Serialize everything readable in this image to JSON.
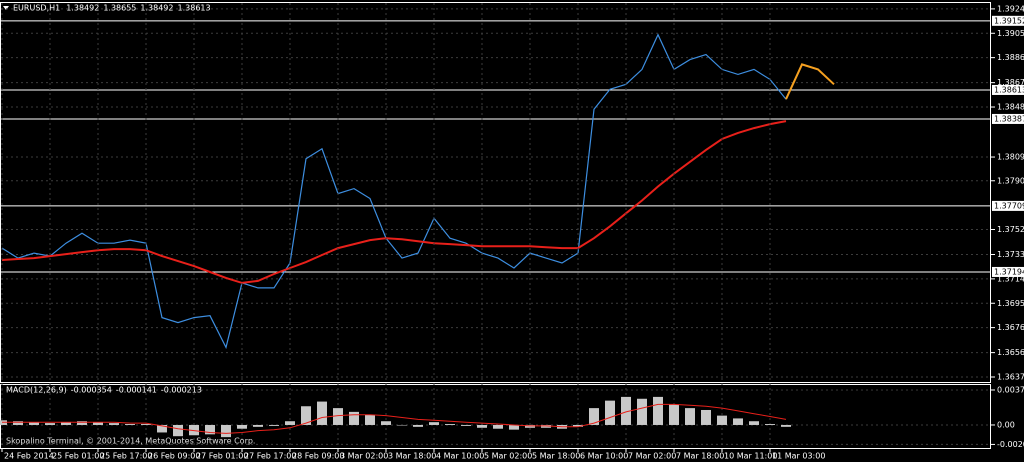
{
  "chart_data": [
    {
      "type": "line",
      "title": "EURUSD,H1",
      "readout": [
        1.38492,
        1.38655,
        1.38492,
        1.38613
      ],
      "categories": [
        "24 Feb 2014",
        null,
        null,
        "25 Feb 01:00",
        null,
        null,
        "25 Feb 17:00",
        null,
        null,
        "26 Feb 09:00",
        null,
        null,
        "27 Feb 01:00",
        null,
        null,
        "27 Feb 17:00",
        null,
        null,
        "28 Feb 09:00",
        null,
        null,
        "3 Mar 02:00",
        null,
        null,
        "3 Mar 18:00",
        null,
        null,
        "4 Mar 10:00",
        null,
        null,
        "5 Mar 02:00",
        null,
        null,
        "5 Mar 18:00",
        null,
        null,
        "6 Mar 10:00",
        null,
        null,
        "7 Mar 02:00",
        null,
        null,
        "7 Mar 18:00",
        null,
        null,
        "10 Mar 11:00",
        null,
        null,
        "11 Mar 03:00",
        null,
        null,
        null,
        null
      ],
      "series": [
        {
          "color": "#3d8ee0",
          "values": [
            1.3738,
            1.37302,
            1.37341,
            1.37318,
            1.37418,
            1.37496,
            1.37418,
            1.37418,
            1.37442,
            1.37418,
            1.36838,
            1.36799,
            1.36838,
            1.36853,
            1.36606,
            1.37109,
            1.3707,
            1.3707,
            1.37264,
            1.38076,
            1.38154,
            1.37805,
            1.37844,
            1.37767,
            1.37457,
            1.37302,
            1.37341,
            1.37612,
            1.37457,
            1.37418,
            1.37341,
            1.37302,
            1.37225,
            1.37341,
            1.37302,
            1.37264,
            1.37341,
            1.38463,
            1.38618,
            1.38657,
            1.38773,
            1.39044,
            1.38773,
            1.3885,
            1.38889,
            1.38773,
            1.38734,
            1.38773,
            1.38695,
            1.38541,
            null,
            null,
            null
          ]
        },
        {
          "color": "#e8201a",
          "values": [
            1.37287,
            1.37295,
            1.37302,
            1.37318,
            1.37333,
            1.37349,
            1.37364,
            1.37372,
            1.37372,
            1.37364,
            1.37318,
            1.37279,
            1.3724,
            1.37194,
            1.37148,
            1.37109,
            1.37124,
            1.37178,
            1.37225,
            1.37271,
            1.37326,
            1.3738,
            1.37411,
            1.37442,
            1.37457,
            1.37449,
            1.37434,
            1.37418,
            1.37411,
            1.37403,
            1.37395,
            1.37395,
            1.37395,
            1.37395,
            1.37387,
            1.3738,
            1.3738,
            1.37457,
            1.3755,
            1.37651,
            1.37751,
            1.3786,
            1.3796,
            1.38053,
            1.38146,
            1.38231,
            1.38278,
            1.38316,
            1.38347,
            1.3837,
            null,
            null,
            null
          ]
        },
        {
          "color": "#f5a020",
          "values": [
            null,
            null,
            null,
            null,
            null,
            null,
            null,
            null,
            null,
            null,
            null,
            null,
            null,
            null,
            null,
            null,
            null,
            null,
            null,
            null,
            null,
            null,
            null,
            null,
            null,
            null,
            null,
            null,
            null,
            null,
            null,
            null,
            null,
            null,
            null,
            null,
            null,
            null,
            null,
            null,
            null,
            null,
            null,
            null,
            null,
            null,
            null,
            null,
            null,
            1.38541,
            1.38812,
            1.38773,
            1.38657
          ]
        }
      ],
      "ylim": [
        1.36336,
        1.39291
      ],
      "yticks": [
        1.39245,
        1.39055,
        1.38865,
        {
          "value": 1.3867,
          "label": "1.38670"
        },
        {
          "value": 1.3848,
          "label": "1.38480"
        },
        {
          "value": 1.3809,
          "label": "1.38090"
        },
        1.37905,
        1.37525,
        {
          "value": 1.3733,
          "label": "1.37330"
        },
        {
          "value": 1.3714,
          "label": "1.37140"
        },
        {
          "value": 1.3695,
          "label": "1.36950"
        },
        {
          "value": 1.3676,
          "label": "1.36760"
        },
        1.36565,
        1.36375
      ],
      "levels": [
        1.39152,
        1.38613,
        1.38387,
        1.37709,
        1.37194
      ],
      "grid": true
    },
    {
      "type": "macd",
      "title": "MACD(12,26,9)",
      "readout": [
        -0.000354,
        -0.000141,
        -0.000213
      ],
      "values": [
        0.0005,
        0.0004,
        0.0003,
        0.0002,
        0.0003,
        0.0004,
        0.0003,
        0.0002,
        0.0001,
        0.0001,
        -0.0008,
        -0.0012,
        -0.0011,
        -0.001,
        -0.0013,
        -0.0004,
        -0.0002,
        -0.0001,
        0.0004,
        0.002,
        0.0025,
        0.0018,
        0.0014,
        0.0011,
        0.0004,
        0,
        -0.0002,
        0.0003,
        0.0001,
        -0.0001,
        -0.0003,
        -0.0004,
        -0.0005,
        -0.0003,
        -0.0003,
        -0.0004,
        -0.0002,
        0.0018,
        0.0026,
        0.003,
        0.0028,
        0.003,
        0.0022,
        0.0018,
        0.0016,
        0.001,
        0.0007,
        0.0004,
        0.0001,
        -0.0002,
        null,
        null,
        null
      ],
      "color": "#c8c8c8",
      "signal": {
        "color": "#e8201a",
        "values": [
          0.0003,
          0.0003,
          0.0003,
          0.0003,
          0.0003,
          0.0003,
          0.0003,
          0.0003,
          0.0002,
          0.0002,
          -0.0001,
          -0.0004,
          -0.0006,
          -0.0008,
          -0.0009,
          -0.0008,
          -0.0006,
          -0.0005,
          -0.0003,
          0.0002,
          0.0008,
          0.001,
          0.0011,
          0.0011,
          0.001,
          0.0008,
          0.0006,
          0.0005,
          0.0004,
          0.0003,
          0.0002,
          0.0001,
          0,
          -0.0001,
          -0.0001,
          -0.0002,
          -0.0002,
          0.0002,
          0.0008,
          0.0014,
          0.0018,
          0.0022,
          0.0022,
          0.0021,
          0.002,
          0.0018,
          0.0015,
          0.0012,
          0.0009,
          0.0006,
          null,
          null,
          null
        ]
      },
      "ylim": [
        -0.00246,
        0.00427
      ],
      "yticks": [
        0.003738,
        {
          "value": 0,
          "label": "0.00"
        },
        -0.002078
      ],
      "grid": true
    }
  ],
  "footer": "Skopalino Terminal, © 2001-2014, MetaQuotes Software Corp."
}
